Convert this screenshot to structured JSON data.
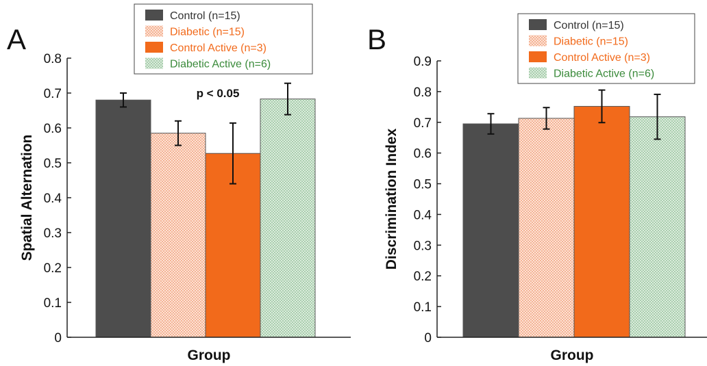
{
  "chart_data": [
    {
      "panel_label": "A",
      "type": "bar",
      "xlabel": "Group",
      "ylabel": "Spatial Alternation",
      "ylim": [
        0,
        0.8
      ],
      "yticks": [
        "0",
        "0.1",
        "0.2",
        "0.3",
        "0.4",
        "0.5",
        "0.6",
        "0.7",
        "0.8"
      ],
      "annotation": "p < 0.05",
      "legend_position": "top",
      "series": [
        {
          "name": "Control",
          "n_label": "(n=15)",
          "value": 0.68,
          "error": 0.02,
          "color": "#4d4d4d",
          "pattern": "solid",
          "text_color": "#333333"
        },
        {
          "name": "Diabetic",
          "n_label": "(n=15)",
          "value": 0.585,
          "error": 0.035,
          "color": "#f9c9b3",
          "pattern": "dots-peach",
          "text_color": "#f26a1b"
        },
        {
          "name": "Control Active",
          "n_label": "(n=3)",
          "value": 0.527,
          "error": 0.087,
          "color": "#f26a1b",
          "pattern": "solid",
          "text_color": "#f26a1b"
        },
        {
          "name": "Diabetic Active",
          "n_label": "(n=6)",
          "value": 0.683,
          "error": 0.045,
          "color": "#c4dfc8",
          "pattern": "dots-green",
          "text_color": "#3a8a3a"
        }
      ]
    },
    {
      "panel_label": "B",
      "type": "bar",
      "xlabel": "Group",
      "ylabel": "Discrimination Index",
      "ylim": [
        0,
        0.9
      ],
      "yticks": [
        "0",
        "0.1",
        "0.2",
        "0.3",
        "0.4",
        "0.5",
        "0.6",
        "0.7",
        "0.8",
        "0.9"
      ],
      "legend_position": "top",
      "series": [
        {
          "name": "Control",
          "n_label": "(n=15)",
          "value": 0.695,
          "error": 0.033,
          "color": "#4d4d4d",
          "pattern": "solid",
          "text_color": "#333333"
        },
        {
          "name": "Diabetic",
          "n_label": "(n=15)",
          "value": 0.713,
          "error": 0.035,
          "color": "#f9c9b3",
          "pattern": "dots-peach",
          "text_color": "#f26a1b"
        },
        {
          "name": "Control Active",
          "n_label": "(n=3)",
          "value": 0.752,
          "error": 0.053,
          "color": "#f26a1b",
          "pattern": "solid",
          "text_color": "#f26a1b"
        },
        {
          "name": "Diabetic Active",
          "n_label": "(n=6)",
          "value": 0.718,
          "error": 0.073,
          "color": "#c4dfc8",
          "pattern": "dots-green",
          "text_color": "#3a8a3a"
        }
      ]
    }
  ]
}
